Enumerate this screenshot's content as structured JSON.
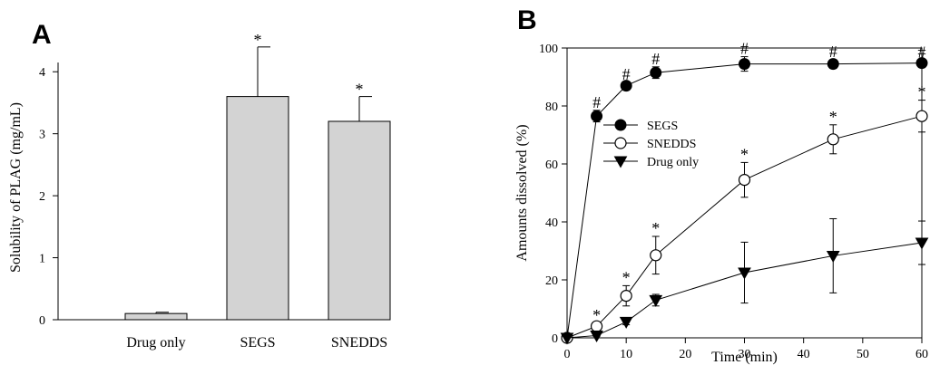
{
  "chart_data": [
    {
      "panel": "A",
      "type": "bar",
      "ylabel": "Solubility of PLAG (mg/mL)",
      "ylim": [
        0,
        4.5
      ],
      "yticks": [
        0,
        1,
        2,
        3,
        4
      ],
      "categories": [
        "Drug only",
        "SEGS",
        "SNEDDS"
      ],
      "values": [
        0.1,
        3.6,
        3.2
      ],
      "errors": [
        0.02,
        0.8,
        0.4
      ],
      "annotations": [
        "",
        "*",
        "*"
      ],
      "bar_color": "#d3d3d3"
    },
    {
      "panel": "B",
      "type": "line",
      "xlabel": "Time (min)",
      "ylabel": "Amounts dissolved (%)",
      "xlim": [
        0,
        60
      ],
      "ylim": [
        0,
        100
      ],
      "xticks": [
        0,
        10,
        20,
        30,
        40,
        50,
        60
      ],
      "yticks": [
        0,
        20,
        40,
        60,
        80,
        100
      ],
      "x": [
        0,
        5,
        10,
        15,
        30,
        45,
        60
      ],
      "legend_position": "upper-left",
      "series": [
        {
          "name": "SEGS",
          "marker": "filled-circle",
          "values": [
            0,
            76.5,
            87,
            91.5,
            94.5,
            94.5,
            94.8
          ],
          "errors": [
            0,
            2,
            1.2,
            2,
            2.5,
            1.5,
            1
          ],
          "annotations": [
            "",
            "#",
            "#",
            "#",
            "#",
            "#",
            "#"
          ]
        },
        {
          "name": "SNEDDS",
          "marker": "open-circle",
          "values": [
            0,
            4,
            14.5,
            28.5,
            54.5,
            68.5,
            76.5
          ],
          "errors": [
            0,
            1,
            3.5,
            6.5,
            6,
            5,
            5.5
          ],
          "annotations": [
            "",
            "*",
            "*",
            "*",
            "*",
            "*",
            "*"
          ]
        },
        {
          "name": "Drug only",
          "marker": "filled-triangle-down",
          "values": [
            0,
            0.8,
            5.5,
            13,
            22.5,
            28.3,
            32.8
          ],
          "errors": [
            0,
            0.3,
            1,
            2,
            10.5,
            12.8,
            7.5
          ],
          "annotations": [
            "",
            "",
            "",
            "",
            "",
            "",
            ""
          ]
        }
      ]
    }
  ],
  "panel_labels": [
    "A",
    "B"
  ]
}
